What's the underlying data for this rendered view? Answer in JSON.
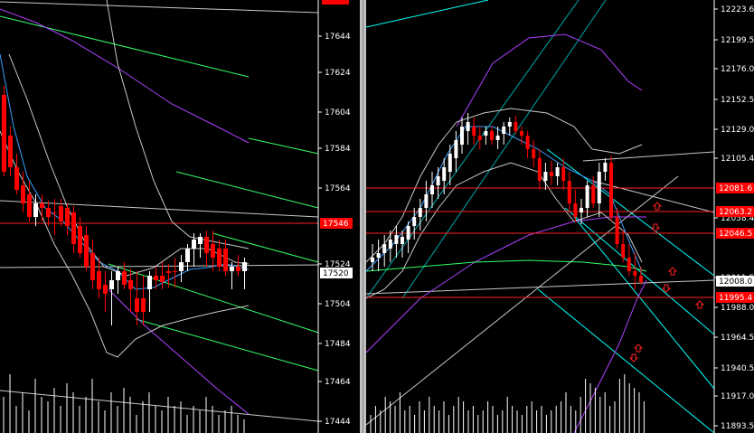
{
  "colors": {
    "background": "#000000",
    "bull": "#ffffff",
    "bear": "#ff0000",
    "axis": "#ffffff",
    "hline": "#ff2020",
    "channel": "#33ff66",
    "cyan": "#00ffff",
    "magenta": "#b040ff",
    "band": "#c8c8c8",
    "volume": "#ffffff",
    "tag_red": "#ff0000",
    "tag_white": "#ffffff"
  },
  "left_chart": {
    "y_ticks": [
      "17644",
      "17624",
      "17604",
      "17584",
      "17564",
      "17524",
      "17504",
      "17484",
      "17464",
      "17444"
    ],
    "price_tags": [
      {
        "text": "17546",
        "kind": "red"
      },
      {
        "text": "17520",
        "kind": "white"
      }
    ]
  },
  "right_chart": {
    "y_ticks": [
      "12223.6",
      "12199.5",
      "12176.0",
      "12152.5",
      "12129.0",
      "12105.4",
      "12058.4",
      "12011.5",
      "11988.0",
      "11964.5",
      "11940.5",
      "11917.0",
      "11893.5"
    ],
    "price_tags": [
      {
        "text": "12081.6",
        "kind": "red"
      },
      {
        "text": "12063.2",
        "kind": "red"
      },
      {
        "text": "12046.5",
        "kind": "red"
      },
      {
        "text": "12008.0",
        "kind": "white"
      },
      {
        "text": "11995.4",
        "kind": "red"
      }
    ]
  }
}
